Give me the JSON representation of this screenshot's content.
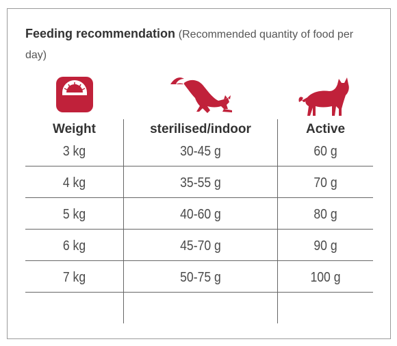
{
  "heading": {
    "title": "Feeding recommendation",
    "subtitle": "(Recommended quantity of food per day)"
  },
  "icons": {
    "weight": "scale-icon",
    "sterilised": "stretching-cat-icon",
    "active": "standing-cat-icon",
    "accent_color": "#c0213a"
  },
  "table": {
    "columns": [
      "Weight",
      "sterilised/indoor",
      "Active"
    ],
    "rows": [
      [
        "3 kg",
        "30-45 g",
        "60 g"
      ],
      [
        "4 kg",
        "35-55 g",
        "70 g"
      ],
      [
        "5 kg",
        "40-60 g",
        "80 g"
      ],
      [
        "6 kg",
        "45-70 g",
        "90 g"
      ],
      [
        "7 kg",
        "50-75 g",
        "100 g"
      ]
    ]
  }
}
